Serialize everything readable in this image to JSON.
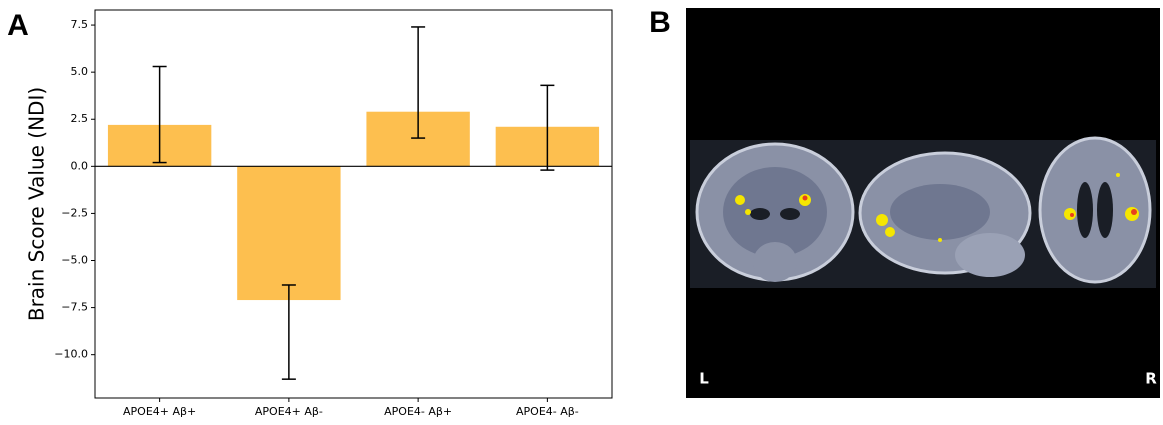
{
  "chart_data": {
    "type": "bar",
    "panel_label": "A",
    "ylabel": "Brain Score Value (NDI)",
    "categories": [
      "APOE4+ Aβ+",
      "APOE4+ Aβ-",
      "APOE4- Aβ+",
      "APOE4- Aβ-"
    ],
    "values": [
      2.2,
      -7.1,
      2.9,
      2.1
    ],
    "ci_low": [
      0.2,
      -11.3,
      1.5,
      -0.2
    ],
    "ci_high": [
      5.3,
      -6.3,
      7.4,
      4.3
    ],
    "color": "#fdbf4f",
    "ylim": [
      -12.3,
      8.3
    ],
    "yticks": [
      {
        "value": -10,
        "label": "−10.0"
      },
      {
        "value": -7.5,
        "label": "−7.5"
      },
      {
        "value": -5,
        "label": "−5.0"
      },
      {
        "value": -2.5,
        "label": "−2.5"
      },
      {
        "value": 0,
        "label": "0.0"
      },
      {
        "value": 2.5,
        "label": "2.5"
      },
      {
        "value": 5,
        "label": "5.0"
      },
      {
        "value": 7.5,
        "label": "7.5"
      }
    ],
    "zero_line": true
  },
  "image_panel": {
    "panel_label": "B",
    "left_label": "L",
    "right_label": "R"
  }
}
